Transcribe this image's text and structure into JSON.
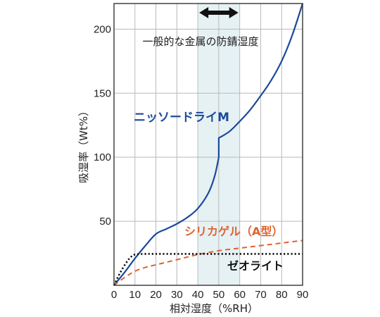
{
  "chart_data": {
    "type": "line",
    "xlabel": "相対湿度（%RH）",
    "ylabel": "吸湿率（Wt%）",
    "xlim": [
      0,
      90
    ],
    "ylim": [
      0,
      220
    ],
    "x_ticks": [
      "0",
      "10",
      "20",
      "30",
      "40",
      "50",
      "60",
      "70",
      "80",
      "90"
    ],
    "y_ticks": [
      "50",
      "100",
      "150",
      "200"
    ],
    "grid": true,
    "band": {
      "label": "一般的な金属の防錆湿度",
      "x_range": [
        40,
        60
      ],
      "color": "#e6f1f4"
    },
    "series": [
      {
        "name": "ニッソードライM",
        "color": "#1b4a9a",
        "style": "solid",
        "x": [
          0,
          5,
          10,
          15,
          20,
          25,
          30,
          35,
          40,
          45,
          48,
          50,
          50,
          55,
          60,
          65,
          70,
          75,
          80,
          85,
          90
        ],
        "y": [
          0,
          10,
          21,
          31,
          40,
          44,
          48,
          53,
          60,
          72,
          85,
          100,
          115,
          120,
          128,
          137,
          148,
          160,
          175,
          195,
          220
        ]
      },
      {
        "name": "シリカゲル（A型）",
        "color": "#e0622f",
        "style": "dashed",
        "x": [
          0,
          5,
          10,
          15,
          20,
          30,
          40,
          50,
          60,
          70,
          80,
          90
        ],
        "y": [
          0,
          6,
          11,
          14,
          16,
          20,
          24,
          27,
          29,
          31,
          33,
          35
        ]
      },
      {
        "name": "ゼオライト",
        "color": "#111111",
        "style": "dotted",
        "x": [
          0,
          3,
          6,
          8,
          10,
          15,
          20,
          30,
          40,
          50,
          60,
          70,
          80,
          90
        ],
        "y": [
          0,
          10,
          18,
          22,
          24,
          24.5,
          24.5,
          24.5,
          24.5,
          24.5,
          24.5,
          24.5,
          24.5,
          24.5
        ]
      }
    ],
    "annotations": [
      "一般的な金属の防錆湿度",
      "ニッソードライM",
      "シリカゲル（A型）",
      "ゼオライト"
    ]
  }
}
